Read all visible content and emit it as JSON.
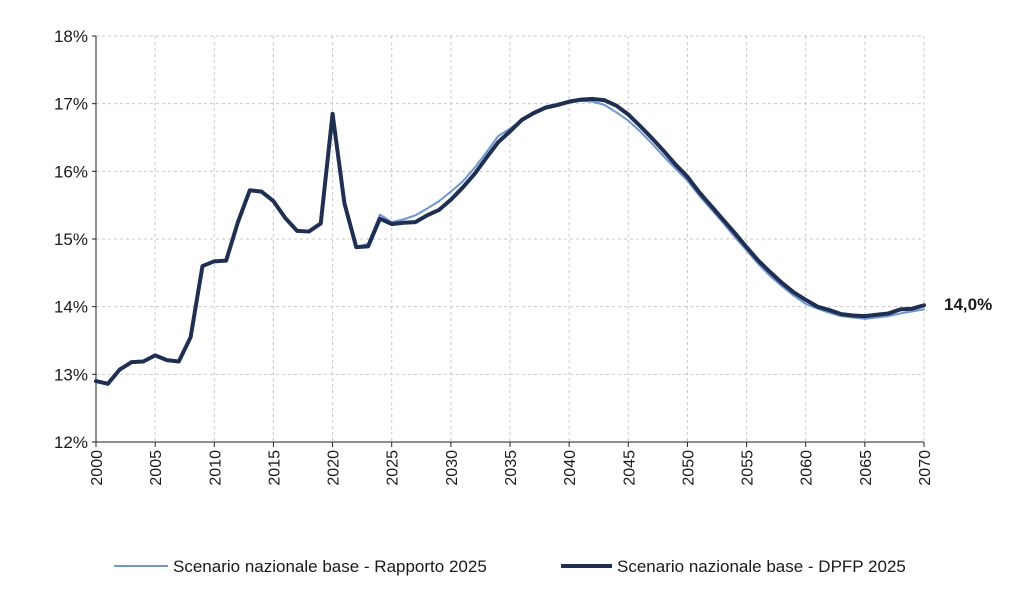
{
  "chart_data": {
    "type": "line",
    "title": "",
    "xlabel": "",
    "ylabel": "",
    "ylim": [
      12,
      18
    ],
    "xlim": [
      2000,
      2070
    ],
    "y_ticks": [
      "12%",
      "13%",
      "14%",
      "15%",
      "16%",
      "17%",
      "18%"
    ],
    "x_ticks": [
      "2000",
      "2005",
      "2010",
      "2015",
      "2020",
      "2025",
      "2030",
      "2035",
      "2040",
      "2045",
      "2050",
      "2055",
      "2060",
      "2065",
      "2070"
    ],
    "grid": "dashed",
    "legend_position": "bottom",
    "end_label": "14,0%",
    "x": [
      2000,
      2001,
      2002,
      2003,
      2004,
      2005,
      2006,
      2007,
      2008,
      2009,
      2010,
      2011,
      2012,
      2013,
      2014,
      2015,
      2016,
      2017,
      2018,
      2019,
      2020,
      2021,
      2022,
      2023,
      2024,
      2025,
      2026,
      2027,
      2028,
      2029,
      2030,
      2031,
      2032,
      2033,
      2034,
      2035,
      2036,
      2037,
      2038,
      2039,
      2040,
      2041,
      2042,
      2043,
      2044,
      2045,
      2046,
      2047,
      2048,
      2049,
      2050,
      2051,
      2052,
      2053,
      2054,
      2055,
      2056,
      2057,
      2058,
      2059,
      2060,
      2061,
      2062,
      2063,
      2064,
      2065,
      2066,
      2067,
      2068,
      2069,
      2070
    ],
    "series": [
      {
        "name": "Scenario nazionale base - Rapporto 2025",
        "color": "#6f95cf",
        "values": [
          12.9,
          12.86,
          13.07,
          13.18,
          13.19,
          13.28,
          13.21,
          13.19,
          13.55,
          14.6,
          14.67,
          14.68,
          15.25,
          15.72,
          15.7,
          15.56,
          15.31,
          15.12,
          15.11,
          15.23,
          16.85,
          15.53,
          14.88,
          14.93,
          15.36,
          15.25,
          15.29,
          15.35,
          15.45,
          15.56,
          15.7,
          15.85,
          16.05,
          16.28,
          16.52,
          16.63,
          16.76,
          16.88,
          16.96,
          17.0,
          17.03,
          17.04,
          17.03,
          16.98,
          16.87,
          16.75,
          16.59,
          16.41,
          16.22,
          16.04,
          15.86,
          15.64,
          15.44,
          15.24,
          15.03,
          14.83,
          14.63,
          14.45,
          14.3,
          14.16,
          14.04,
          13.97,
          13.91,
          13.86,
          13.84,
          13.82,
          13.84,
          13.86,
          13.9,
          13.93,
          13.96
        ]
      },
      {
        "name": "Scenario nazionale base - DPFP 2025",
        "color": "#1f2f52",
        "values": [
          12.9,
          12.86,
          13.07,
          13.18,
          13.19,
          13.28,
          13.21,
          13.19,
          13.55,
          14.6,
          14.67,
          14.68,
          15.25,
          15.72,
          15.7,
          15.56,
          15.31,
          15.12,
          15.11,
          15.23,
          16.85,
          15.53,
          14.88,
          14.89,
          15.3,
          15.22,
          15.24,
          15.25,
          15.35,
          15.43,
          15.58,
          15.76,
          15.96,
          16.2,
          16.43,
          16.59,
          16.76,
          16.86,
          16.94,
          16.98,
          17.03,
          17.06,
          17.07,
          17.05,
          16.97,
          16.84,
          16.67,
          16.49,
          16.3,
          16.1,
          15.92,
          15.69,
          15.49,
          15.29,
          15.09,
          14.88,
          14.68,
          14.51,
          14.35,
          14.21,
          14.1,
          14.0,
          13.95,
          13.89,
          13.87,
          13.86,
          13.88,
          13.9,
          13.96,
          13.97,
          14.02
        ]
      }
    ]
  }
}
